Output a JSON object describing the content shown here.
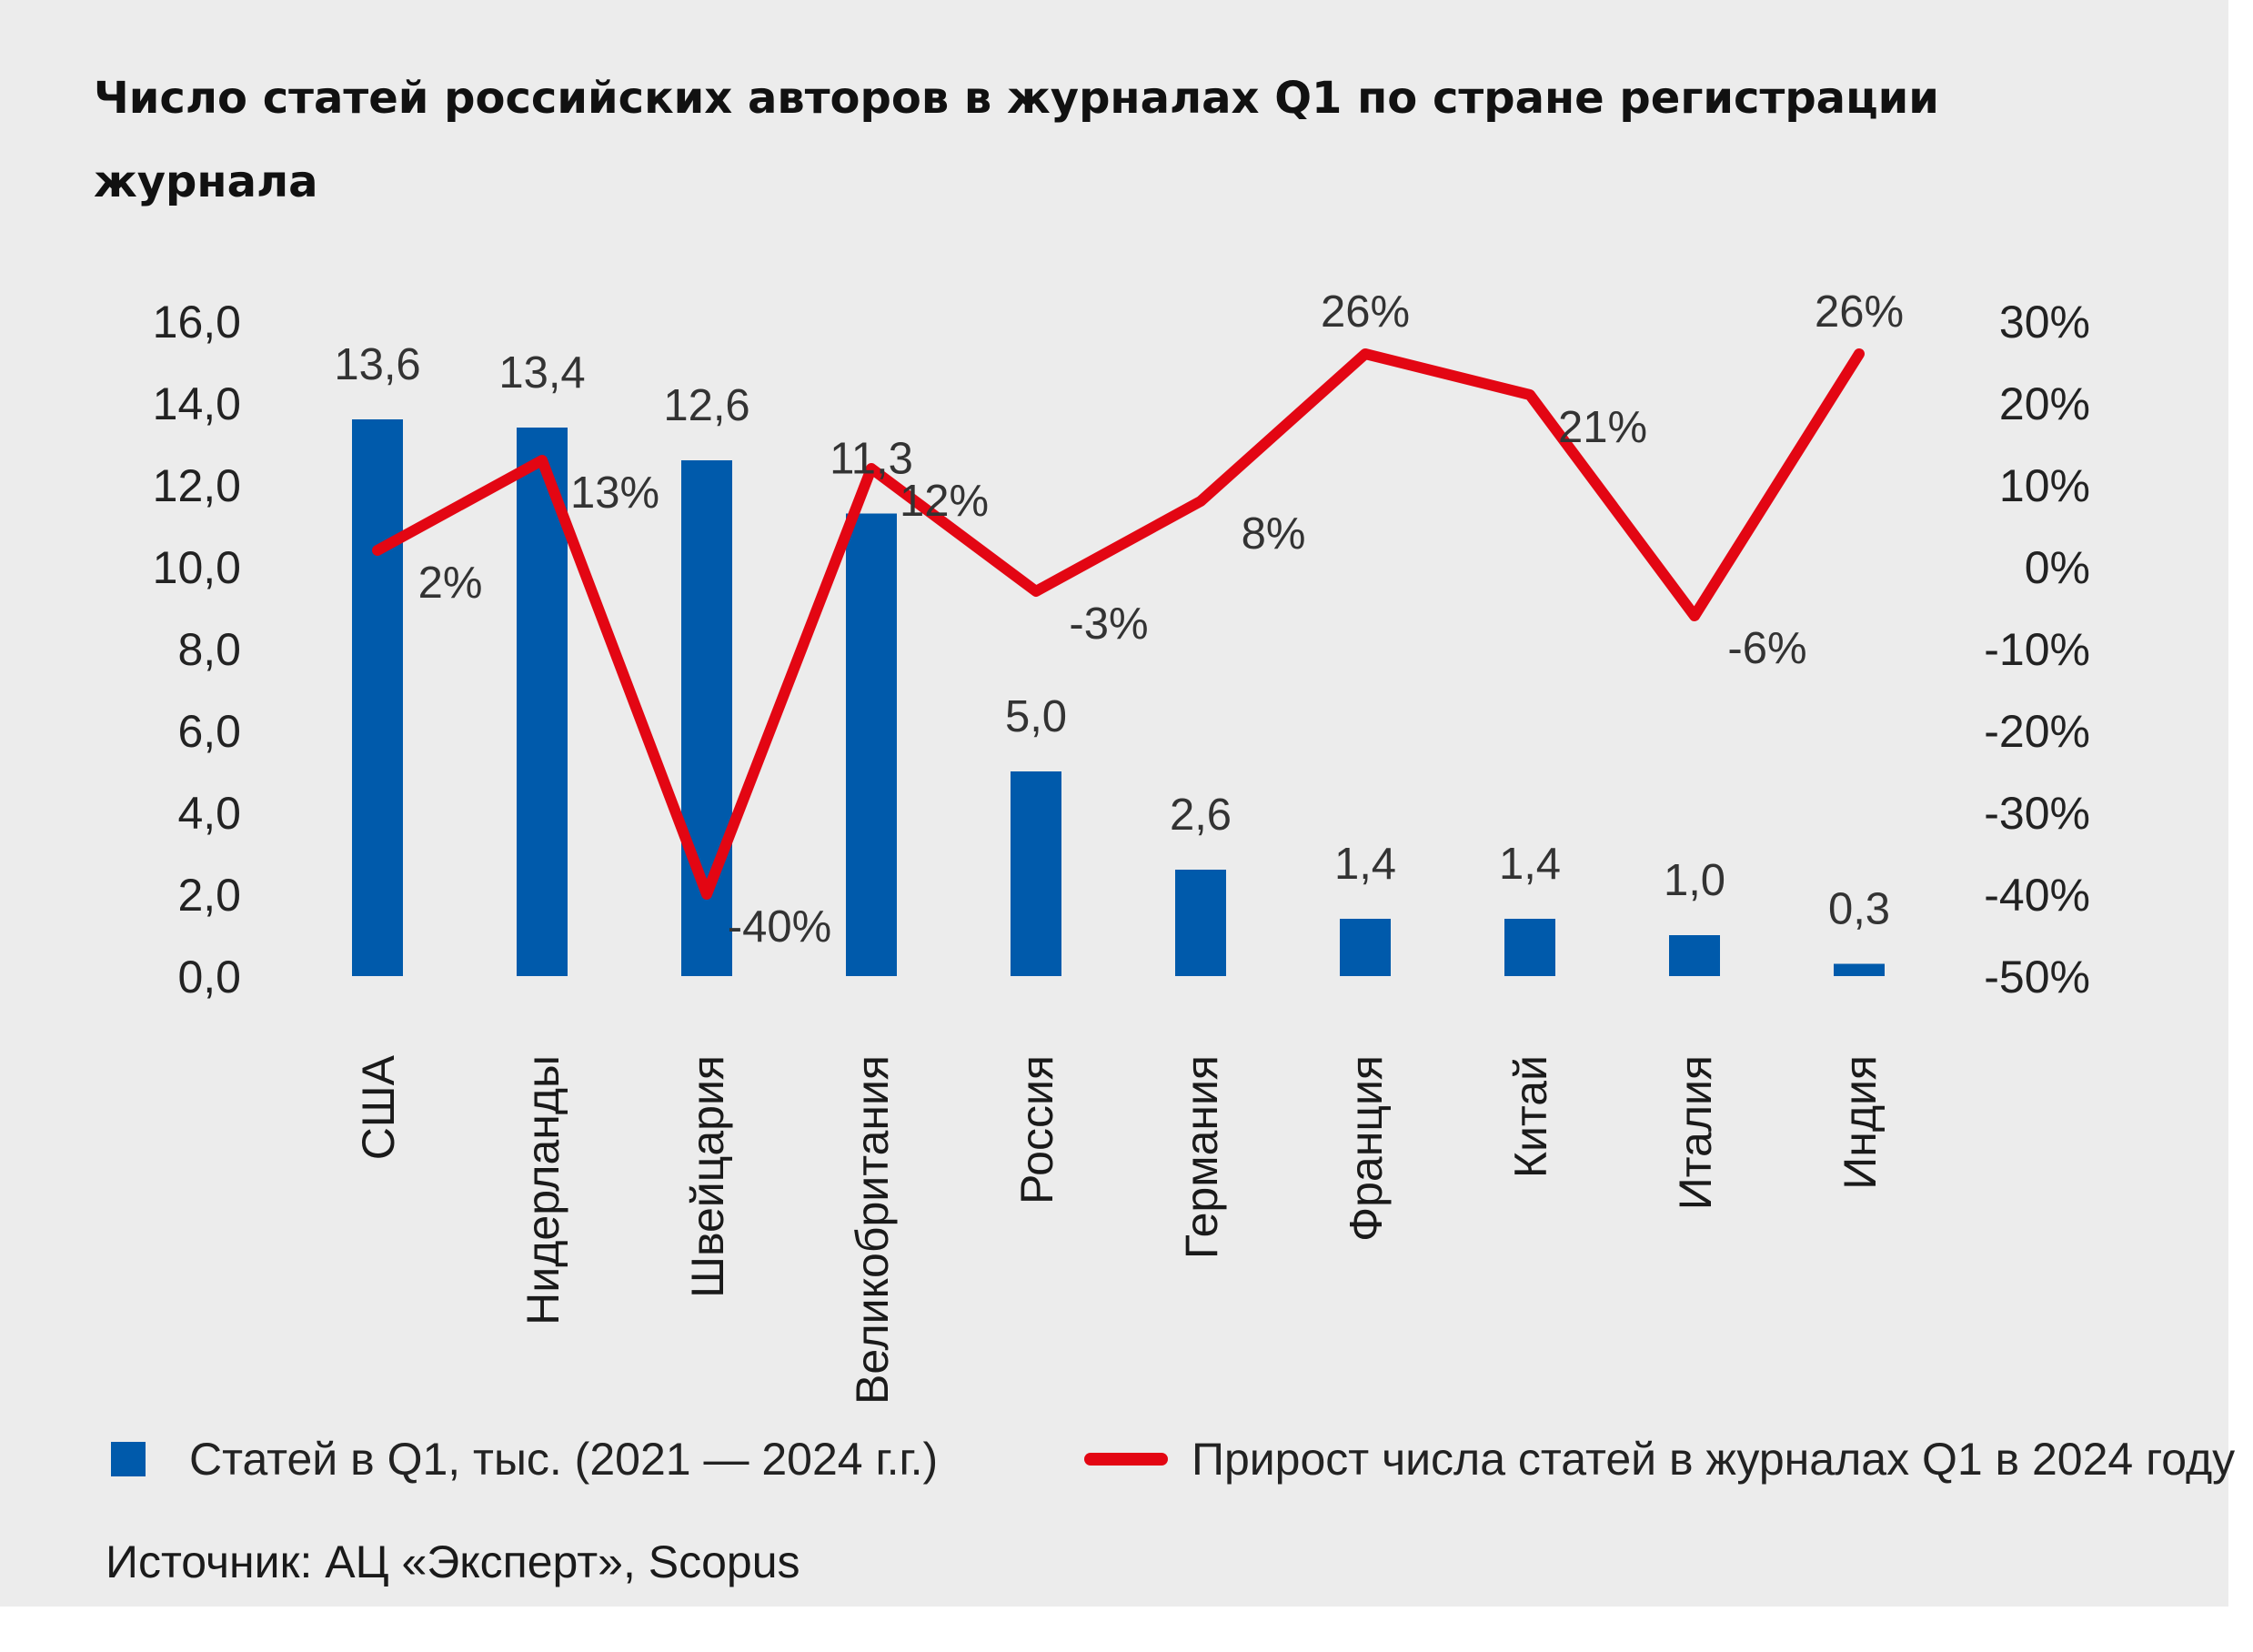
{
  "chart_data": {
    "type": "bar",
    "title": "Число статей российских авторов в журналах Q1 по стране регистрации журнала",
    "categories": [
      "США",
      "Нидерланды",
      "Швейцария",
      "Великобритания",
      "Россия",
      "Германия",
      "Франция",
      "Китай",
      "Италия",
      "Индия"
    ],
    "series": [
      {
        "name": "Статей в Q1, тыс. (2021 — 2024 г.г.)",
        "type": "bar",
        "axis": "left",
        "values": [
          13.6,
          13.4,
          12.6,
          11.3,
          5.0,
          2.6,
          1.4,
          1.4,
          1.0,
          0.3
        ],
        "labels": [
          "13,6",
          "13,4",
          "12,6",
          "11,3",
          "5,0",
          "2,6",
          "1,4",
          "1,4",
          "1,0",
          "0,3"
        ]
      },
      {
        "name": "Прирост числа статей в журналах Q1 в 2024 году",
        "type": "line",
        "axis": "right",
        "values": [
          2,
          13,
          -40,
          12,
          -3,
          8,
          26,
          21,
          -6,
          26
        ],
        "labels": [
          "2%",
          "13%",
          "-40%",
          "12%",
          "-3%",
          "8%",
          "26%",
          "21%",
          "-6%",
          "26%"
        ]
      }
    ],
    "y_left": {
      "ylim": [
        0,
        16
      ],
      "ticks": [
        "0,0",
        "2,0",
        "4,0",
        "6,0",
        "8,0",
        "10,0",
        "12,0",
        "14,0",
        "16,0"
      ]
    },
    "y_right": {
      "ylim": [
        -50,
        30
      ],
      "ticks": [
        "-50%",
        "-40%",
        "-30%",
        "-20%",
        "-10%",
        "0%",
        "10%",
        "20%",
        "30%"
      ]
    },
    "grid": false,
    "legend": "bottom",
    "source": "Источник: АЦ «Эксперт», Scopus"
  },
  "colors": {
    "bar": "#005aab",
    "line": "#e30613",
    "background": "#ececec"
  }
}
